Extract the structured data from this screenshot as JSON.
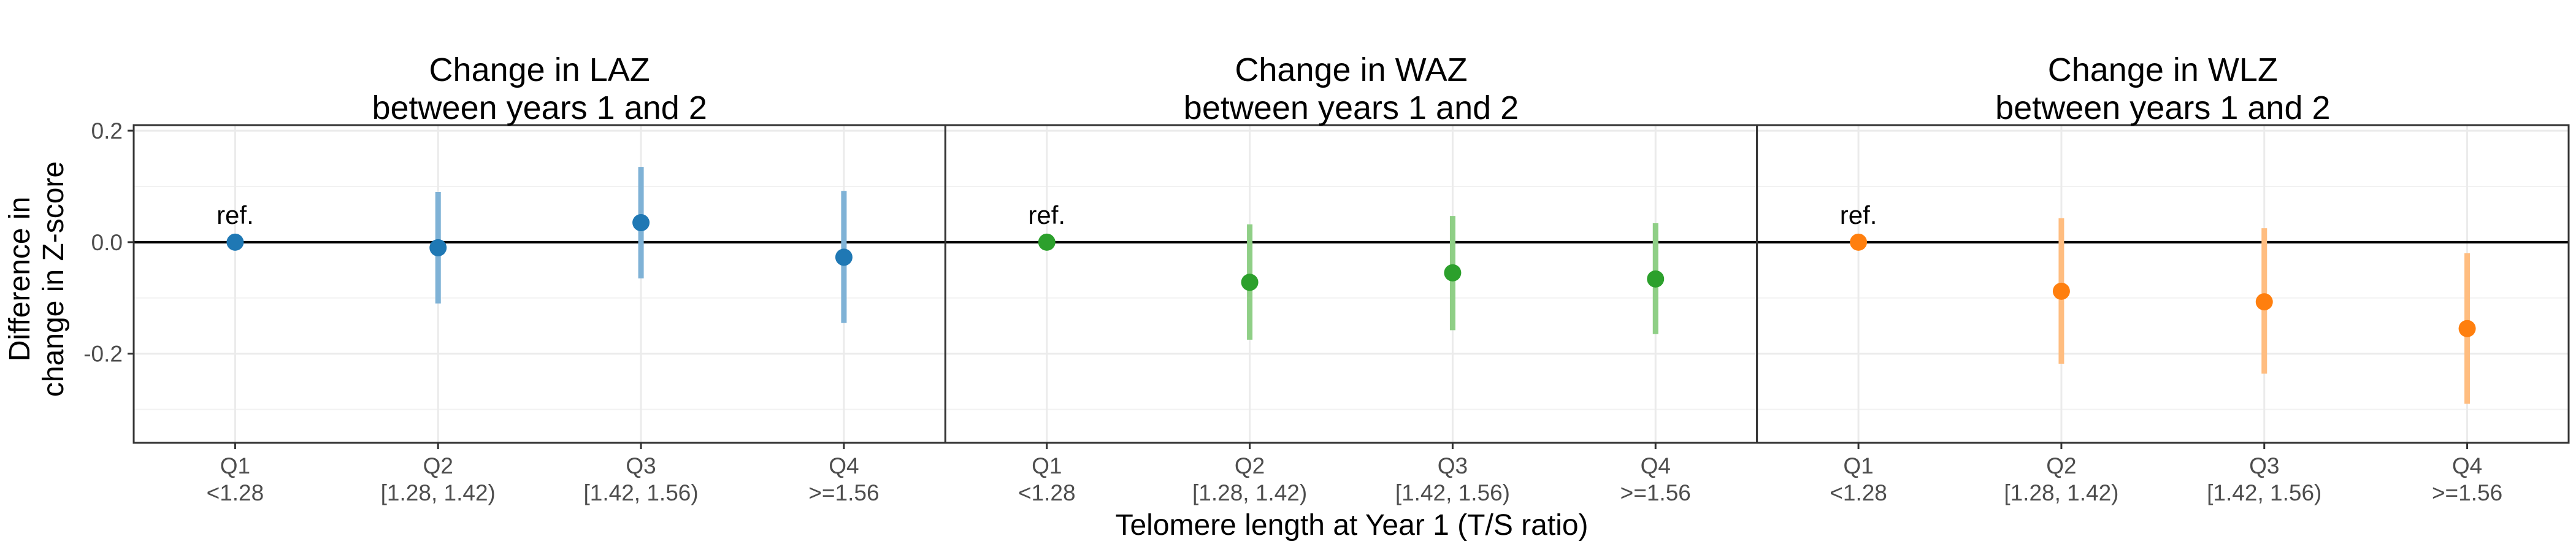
{
  "chart_data": {
    "type": "scatter",
    "style": "point-range (estimate with 95% CI), faceted",
    "xlabel": "Telomere length at Year 1 (T/S ratio)",
    "ylabel": [
      "Difference in",
      "change in Z-score"
    ],
    "ylim": [
      -0.36,
      0.21
    ],
    "yticks": [
      -0.2,
      0.0,
      0.2
    ],
    "ytick_labels": [
      "-0.2",
      "0.0",
      "0.2"
    ],
    "categories": [
      "Q1",
      "Q2",
      "Q3",
      "Q4"
    ],
    "category_sublabels": [
      "<1.28",
      "[1.28, 1.42)",
      "[1.42, 1.56)",
      ">=1.56"
    ],
    "reference_label": "ref.",
    "grid": true,
    "zero_line": true,
    "facets": [
      {
        "title": [
          "Change in LAZ",
          "between years 1 and 2"
        ],
        "point_color": "#1F78B4",
        "ci_color": "#7FB2D6",
        "points": [
          {
            "category": "Q1",
            "value": 0.0,
            "lower": null,
            "upper": null,
            "is_reference": true
          },
          {
            "category": "Q2",
            "value": -0.01,
            "lower": -0.11,
            "upper": 0.09,
            "is_reference": false
          },
          {
            "category": "Q3",
            "value": 0.035,
            "lower": -0.065,
            "upper": 0.135,
            "is_reference": false
          },
          {
            "category": "Q4",
            "value": -0.027,
            "lower": -0.145,
            "upper": 0.092,
            "is_reference": false
          }
        ]
      },
      {
        "title": [
          "Change in WAZ",
          "between years 1 and 2"
        ],
        "point_color": "#2CA02C",
        "ci_color": "#8FCF86",
        "points": [
          {
            "category": "Q1",
            "value": 0.0,
            "lower": null,
            "upper": null,
            "is_reference": true
          },
          {
            "category": "Q2",
            "value": -0.072,
            "lower": -0.175,
            "upper": 0.032,
            "is_reference": false
          },
          {
            "category": "Q3",
            "value": -0.055,
            "lower": -0.158,
            "upper": 0.047,
            "is_reference": false
          },
          {
            "category": "Q4",
            "value": -0.066,
            "lower": -0.165,
            "upper": 0.034,
            "is_reference": false
          }
        ]
      },
      {
        "title": [
          "Change in WLZ",
          "between years 1 and 2"
        ],
        "point_color": "#FF7F0E",
        "ci_color": "#FFBD80",
        "points": [
          {
            "category": "Q1",
            "value": 0.0,
            "lower": null,
            "upper": null,
            "is_reference": true
          },
          {
            "category": "Q2",
            "value": -0.088,
            "lower": -0.218,
            "upper": 0.043,
            "is_reference": false
          },
          {
            "category": "Q3",
            "value": -0.107,
            "lower": -0.236,
            "upper": 0.025,
            "is_reference": false
          },
          {
            "category": "Q4",
            "value": -0.155,
            "lower": -0.29,
            "upper": -0.02,
            "is_reference": false
          }
        ]
      }
    ]
  }
}
